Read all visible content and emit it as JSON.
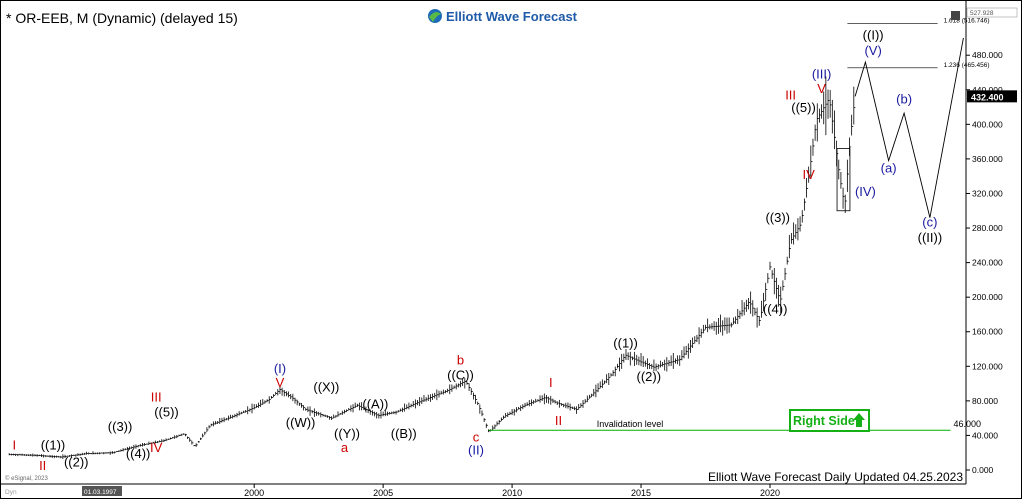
{
  "header": {
    "symbol_line": "* OR-EEB, M (Dynamic) (delayed 15)",
    "logo_text": "Elliott Wave Forecast",
    "logo_icon": "globe-logo"
  },
  "footer": {
    "updated": "Elliott Wave Forecast Daily Updated 04.25.2023",
    "copyright": "© eSignal, 2023",
    "corner_label": "Dyn",
    "date_marker": "01.03.1997"
  },
  "badge": {
    "label": "Right Side",
    "icon": "up-arrow-icon"
  },
  "colors": {
    "up": "#000000",
    "grid_line": "#00b000",
    "wave_red": "#cc0000",
    "wave_blue": "#1a1aa0",
    "badge_green": "#15b015",
    "price_tag_bg": "#000000"
  },
  "chart_data": {
    "type": "line",
    "title": "OR-EEB, M (Dynamic)",
    "xlabel": "",
    "ylabel": "",
    "xlim": [
      1990.3,
      2027.6
    ],
    "ylim": [
      0,
      530
    ],
    "x_ticks": [
      2000,
      2005,
      2010,
      2015,
      2020
    ],
    "x_tick_labels": [
      "2000",
      "2005",
      "2010",
      "2015",
      "2020"
    ],
    "y_ticks": [
      0,
      40,
      80,
      120,
      160,
      200,
      240,
      280,
      320,
      360,
      400,
      440,
      480
    ],
    "y_tick_labels": [
      "0.000",
      "40.000",
      "80.000",
      "120.000",
      "160.000",
      "200.000",
      "240.000",
      "280.000",
      "320.000",
      "360.000",
      "400.000",
      "440.000",
      "480.000"
    ],
    "last_price": 432.4,
    "last_price_label": "432.400",
    "top_price_label": "527.928",
    "price_path": [
      [
        1990.5,
        18
      ],
      [
        1991.5,
        17
      ],
      [
        1992.5,
        15
      ],
      [
        1993.5,
        19
      ],
      [
        1994.5,
        20
      ],
      [
        1995.5,
        28
      ],
      [
        1996.5,
        34
      ],
      [
        1997.3,
        42
      ],
      [
        1997.7,
        27
      ],
      [
        1998.3,
        52
      ],
      [
        1999.0,
        60
      ],
      [
        2000.0,
        72
      ],
      [
        2000.6,
        82
      ],
      [
        2001.0,
        93
      ],
      [
        2001.5,
        83
      ],
      [
        2002.0,
        70
      ],
      [
        2003.0,
        60
      ],
      [
        2004.0,
        75
      ],
      [
        2004.8,
        63
      ],
      [
        2005.5,
        67
      ],
      [
        2006.5,
        80
      ],
      [
        2007.5,
        92
      ],
      [
        2008.2,
        103
      ],
      [
        2008.7,
        75
      ],
      [
        2009.1,
        44
      ],
      [
        2009.7,
        62
      ],
      [
        2010.5,
        75
      ],
      [
        2011.3,
        84
      ],
      [
        2011.7,
        78
      ],
      [
        2012.5,
        70
      ],
      [
        2013.3,
        93
      ],
      [
        2013.9,
        112
      ],
      [
        2014.4,
        133
      ],
      [
        2015.0,
        125
      ],
      [
        2015.5,
        119
      ],
      [
        2016.5,
        128
      ],
      [
        2017.5,
        165
      ],
      [
        2018.5,
        168
      ],
      [
        2019.2,
        195
      ],
      [
        2019.6,
        172
      ],
      [
        2020.0,
        235
      ],
      [
        2020.4,
        195
      ],
      [
        2020.8,
        265
      ],
      [
        2021.2,
        285
      ],
      [
        2021.6,
        360
      ],
      [
        2021.8,
        405
      ],
      [
        2022.3,
        430
      ],
      [
        2022.7,
        340
      ],
      [
        2022.9,
        305
      ],
      [
        2023.1,
        380
      ],
      [
        2023.3,
        432.4
      ]
    ],
    "projection": [
      [
        2023.3,
        432.4
      ],
      [
        2023.7,
        472
      ],
      [
        2024.6,
        358
      ],
      [
        2025.2,
        413
      ],
      [
        2026.2,
        292
      ],
      [
        2027.5,
        500
      ]
    ],
    "fib_lines": [
      {
        "value": 516.746,
        "label": "1.618 (516.746)",
        "from": 2023.0,
        "to": 2026.5
      },
      {
        "value": 465.456,
        "label": "1.236 (465.456)",
        "from": 2023.0,
        "to": 2026.5
      }
    ],
    "box": {
      "from": 2022.6,
      "to": 2023.1,
      "low": 300,
      "high": 372
    },
    "invalidation": {
      "value": 46,
      "label": "Invalidation level",
      "price_label": "46.000",
      "from": 2009.1,
      "to": 2027.0
    },
    "labels": [
      {
        "text": "I",
        "x": 1990.7,
        "y": 24,
        "color": "red"
      },
      {
        "text": "II",
        "x": 1991.8,
        "y": 0,
        "color": "red"
      },
      {
        "text": "((1))",
        "x": 1992.2,
        "y": 24,
        "color": "black"
      },
      {
        "text": "((2))",
        "x": 1993.1,
        "y": 4,
        "color": "black"
      },
      {
        "text": "((3))",
        "x": 1994.8,
        "y": 45,
        "color": "black"
      },
      {
        "text": "((4))",
        "x": 1995.5,
        "y": 14,
        "color": "black"
      },
      {
        "text": "((5))",
        "x": 1996.6,
        "y": 62,
        "color": "black"
      },
      {
        "text": "III",
        "x": 1996.2,
        "y": 79,
        "color": "red"
      },
      {
        "text": "IV",
        "x": 1996.2,
        "y": 21,
        "color": "red"
      },
      {
        "text": "(I)",
        "x": 2001.0,
        "y": 112,
        "color": "blue"
      },
      {
        "text": "V",
        "x": 2001.0,
        "y": 96,
        "color": "red"
      },
      {
        "text": "((X))",
        "x": 2002.8,
        "y": 91,
        "color": "black"
      },
      {
        "text": "((W))",
        "x": 2001.8,
        "y": 50,
        "color": "black"
      },
      {
        "text": "((A))",
        "x": 2004.7,
        "y": 71,
        "color": "black"
      },
      {
        "text": "((Y))",
        "x": 2003.6,
        "y": 37,
        "color": "black"
      },
      {
        "text": "a",
        "x": 2003.5,
        "y": 21,
        "color": "red"
      },
      {
        "text": "((B))",
        "x": 2005.8,
        "y": 37,
        "color": "black"
      },
      {
        "text": "b",
        "x": 2008.0,
        "y": 122,
        "color": "red"
      },
      {
        "text": "((C))",
        "x": 2008.0,
        "y": 105,
        "color": "black"
      },
      {
        "text": "c",
        "x": 2008.6,
        "y": 33,
        "color": "red"
      },
      {
        "text": "(II)",
        "x": 2008.6,
        "y": 18,
        "color": "blue"
      },
      {
        "text": "I",
        "x": 2011.5,
        "y": 96,
        "color": "red"
      },
      {
        "text": "II",
        "x": 2011.8,
        "y": 52,
        "color": "red"
      },
      {
        "text": "((1))",
        "x": 2014.4,
        "y": 142,
        "color": "black"
      },
      {
        "text": "((2))",
        "x": 2015.3,
        "y": 103,
        "color": "black"
      },
      {
        "text": "((3))",
        "x": 2020.3,
        "y": 287,
        "color": "black"
      },
      {
        "text": "((4))",
        "x": 2020.2,
        "y": 181,
        "color": "black"
      },
      {
        "text": "((5))",
        "x": 2021.3,
        "y": 414,
        "color": "black"
      },
      {
        "text": "(III)",
        "x": 2022.0,
        "y": 453,
        "color": "blue"
      },
      {
        "text": "III",
        "x": 2020.8,
        "y": 429,
        "color": "red"
      },
      {
        "text": "V",
        "x": 2022.0,
        "y": 436,
        "color": "red"
      },
      {
        "text": "IV",
        "x": 2021.5,
        "y": 337,
        "color": "red"
      },
      {
        "text": "(IV)",
        "x": 2023.7,
        "y": 317,
        "color": "blue"
      },
      {
        "text": "((I))",
        "x": 2024.0,
        "y": 498,
        "color": "black"
      },
      {
        "text": "(V)",
        "x": 2024.0,
        "y": 480,
        "color": "blue"
      },
      {
        "text": "(a)",
        "x": 2024.6,
        "y": 344,
        "color": "blue"
      },
      {
        "text": "(b)",
        "x": 2025.2,
        "y": 424,
        "color": "blue"
      },
      {
        "text": "(c)",
        "x": 2026.2,
        "y": 282,
        "color": "blue"
      },
      {
        "text": "((II))",
        "x": 2026.2,
        "y": 264,
        "color": "black"
      }
    ]
  }
}
